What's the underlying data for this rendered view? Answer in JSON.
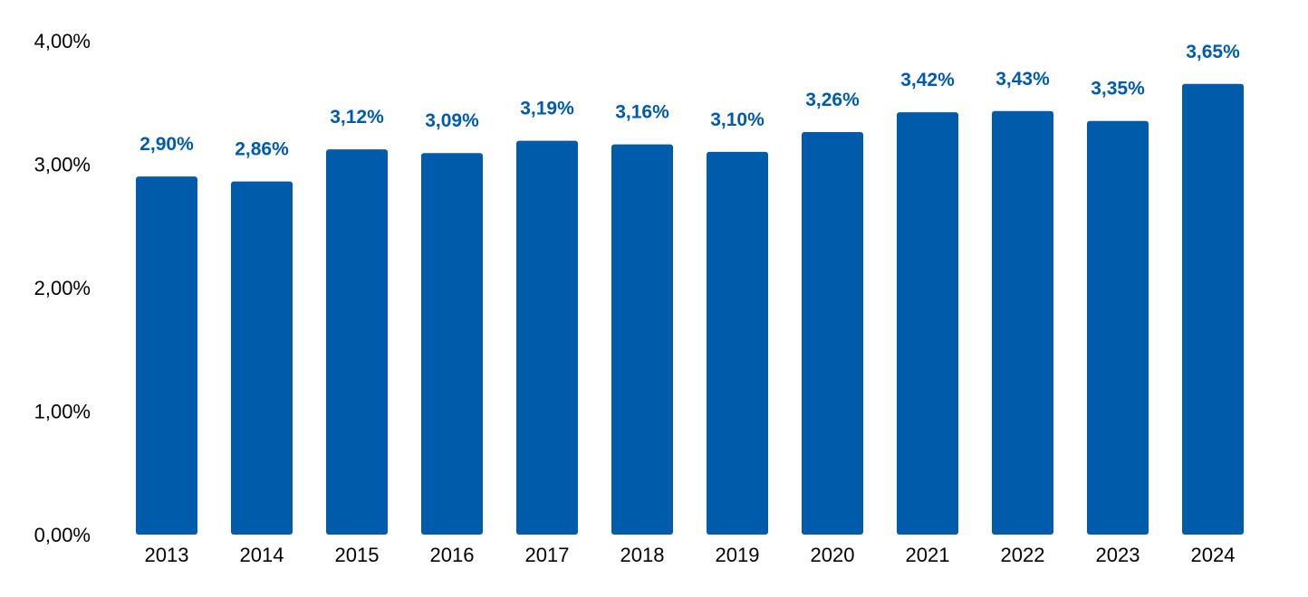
{
  "chart_data": {
    "type": "bar",
    "title": "",
    "xlabel": "",
    "ylabel": "",
    "categories": [
      "2013",
      "2014",
      "2015",
      "2016",
      "2017",
      "2018",
      "2019",
      "2020",
      "2021",
      "2022",
      "2023",
      "2024"
    ],
    "values": [
      2.9,
      2.86,
      3.12,
      3.09,
      3.19,
      3.16,
      3.1,
      3.26,
      3.42,
      3.43,
      3.35,
      3.65
    ],
    "data_labels": [
      "2,90%",
      "2,86%",
      "3,12%",
      "3,09%",
      "3,19%",
      "3,16%",
      "3,10%",
      "3,26%",
      "3,42%",
      "3,43%",
      "3,35%",
      "3,65%"
    ],
    "y_ticks": [
      0,
      1,
      2,
      3,
      4
    ],
    "y_tick_labels": [
      "0,00%",
      "1,00%",
      "2,00%",
      "3,00%",
      "4,00%"
    ],
    "ylim": [
      0,
      4
    ],
    "grid": false,
    "legend": "none",
    "colors": {
      "bar": "#005BAA",
      "data_label": "#005BAA",
      "tick_label": "#000000"
    }
  }
}
